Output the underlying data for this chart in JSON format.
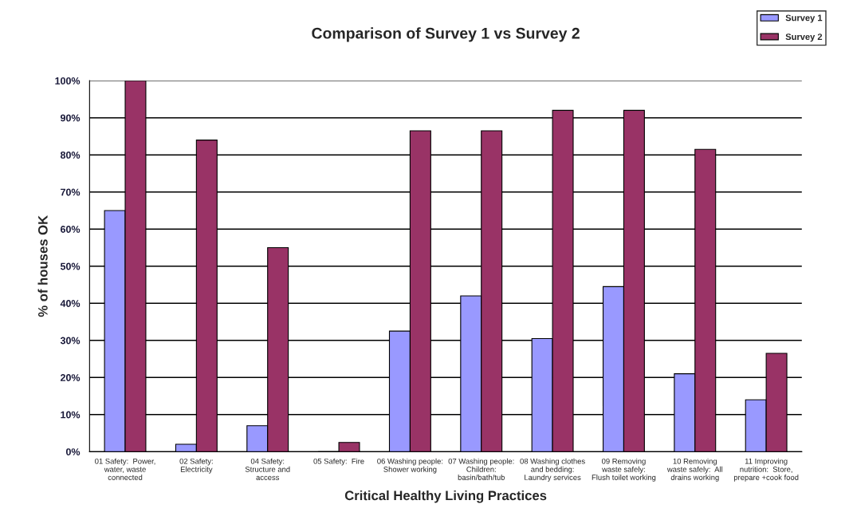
{
  "chart_data": {
    "type": "bar",
    "title": "Comparison of Survey 1 vs Survey 2",
    "xlabel": "Critical Healthy Living Practices",
    "ylabel": "% of houses OK",
    "categories": [
      "01 Safety:  Power,\nwater, waste\nconnected",
      "02 Safety:\nElectricity",
      "04 Safety:\nStructure and\naccess",
      "05 Safety:  Fire",
      "06 Washing people:\nShower working",
      "07 Washing people:\nChildren:\nbasin/bath/tub",
      "08 Washing clothes\nand bedding:\nLaundry services",
      "09 Removing\nwaste safely:\nFlush toilet working",
      "10 Removing\nwaste safely:  All\ndrains working",
      "11 Improving\nnutrition:  Store,\nprepare +cook food"
    ],
    "series": [
      {
        "name": "Survey 1",
        "color": "#9999ff",
        "values": [
          65,
          2,
          7,
          0,
          32.5,
          42,
          30.5,
          44.5,
          21,
          14
        ]
      },
      {
        "name": "Survey 2",
        "color": "#993366",
        "values": [
          100,
          84,
          55,
          2.5,
          86.5,
          86.5,
          92,
          92,
          81.5,
          26.5
        ]
      }
    ],
    "ylim": [
      0,
      100
    ],
    "yticks": [
      {
        "value": 0,
        "label": "0%"
      },
      {
        "value": 10,
        "label": "10%"
      },
      {
        "value": 20,
        "label": "20%"
      },
      {
        "value": 30,
        "label": "30%"
      },
      {
        "value": 40,
        "label": "40%"
      },
      {
        "value": 50,
        "label": "50%"
      },
      {
        "value": 60,
        "label": "60%"
      },
      {
        "value": 70,
        "label": "70%"
      },
      {
        "value": 80,
        "label": "80%"
      },
      {
        "value": 90,
        "label": "90%"
      },
      {
        "value": 100,
        "label": "100%"
      }
    ],
    "grid": "y",
    "legend": "top right"
  }
}
